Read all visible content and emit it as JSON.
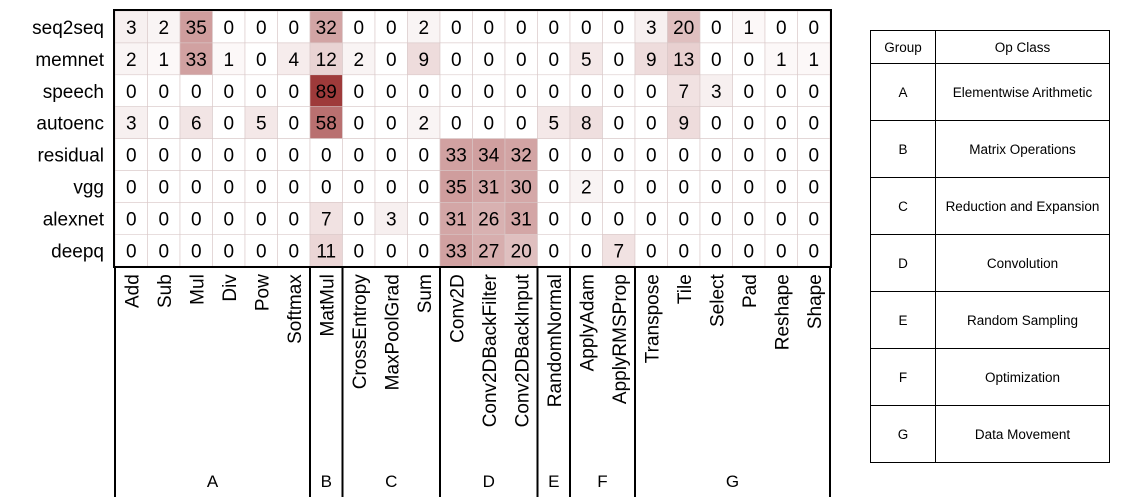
{
  "chart_data": {
    "type": "heatmap",
    "rows": [
      "seq2seq",
      "memnet",
      "speech",
      "autoenc",
      "residual",
      "vgg",
      "alexnet",
      "deepq"
    ],
    "columns": [
      "Add",
      "Sub",
      "Mul",
      "Div",
      "Pow",
      "Softmax",
      "MatMul",
      "CrossEntropy",
      "MaxPoolGrad",
      "Sum",
      "Conv2D",
      "Conv2DBackFilter",
      "Conv2DBackInput",
      "RandomNormal",
      "ApplyAdam",
      "ApplyRMSProp",
      "Transpose",
      "Tile",
      "Select",
      "Pad",
      "Reshape",
      "Shape"
    ],
    "values": [
      [
        3,
        2,
        35,
        0,
        0,
        0,
        32,
        0,
        0,
        2,
        0,
        0,
        0,
        0,
        0,
        0,
        3,
        20,
        0,
        1,
        0,
        0
      ],
      [
        2,
        1,
        33,
        1,
        0,
        4,
        12,
        2,
        0,
        9,
        0,
        0,
        0,
        0,
        5,
        0,
        9,
        13,
        0,
        0,
        1,
        1
      ],
      [
        0,
        0,
        0,
        0,
        0,
        0,
        89,
        0,
        0,
        0,
        0,
        0,
        0,
        0,
        0,
        0,
        0,
        7,
        3,
        0,
        0,
        0
      ],
      [
        3,
        0,
        6,
        0,
        5,
        0,
        58,
        0,
        0,
        2,
        0,
        0,
        0,
        5,
        8,
        0,
        0,
        9,
        0,
        0,
        0,
        0
      ],
      [
        0,
        0,
        0,
        0,
        0,
        0,
        0,
        0,
        0,
        0,
        33,
        34,
        32,
        0,
        0,
        0,
        0,
        0,
        0,
        0,
        0,
        0
      ],
      [
        0,
        0,
        0,
        0,
        0,
        0,
        0,
        0,
        0,
        0,
        35,
        31,
        30,
        0,
        2,
        0,
        0,
        0,
        0,
        0,
        0,
        0
      ],
      [
        0,
        0,
        0,
        0,
        0,
        0,
        7,
        0,
        3,
        0,
        31,
        26,
        31,
        0,
        0,
        0,
        0,
        0,
        0,
        0,
        0,
        0
      ],
      [
        0,
        0,
        0,
        0,
        0,
        0,
        11,
        0,
        0,
        0,
        33,
        27,
        20,
        0,
        0,
        7,
        0,
        0,
        0,
        0,
        0,
        0
      ]
    ],
    "groups": [
      {
        "label": "A",
        "columns": [
          "Add",
          "Sub",
          "Mul",
          "Div",
          "Pow",
          "Softmax"
        ]
      },
      {
        "label": "B",
        "columns": [
          "MatMul"
        ]
      },
      {
        "label": "C",
        "columns": [
          "CrossEntropy",
          "MaxPoolGrad",
          "Sum"
        ]
      },
      {
        "label": "D",
        "columns": [
          "Conv2D",
          "Conv2DBackFilter",
          "Conv2DBackInput"
        ]
      },
      {
        "label": "E",
        "columns": [
          "RandomNormal"
        ]
      },
      {
        "label": "F",
        "columns": [
          "ApplyAdam",
          "ApplyRMSProp"
        ]
      },
      {
        "label": "G",
        "columns": [
          "Transpose",
          "Tile",
          "Select",
          "Pad",
          "Reshape",
          "Shape"
        ]
      }
    ],
    "colormap": {
      "low": "#ffffff",
      "high": "#9e3a3a"
    },
    "value_range": [
      0,
      89
    ]
  },
  "legend_table": {
    "headers": [
      "Group",
      "Op Class"
    ],
    "rows": [
      {
        "group": "A",
        "op_class": "Elementwise Arithmetic"
      },
      {
        "group": "B",
        "op_class": "Matrix Operations"
      },
      {
        "group": "C",
        "op_class": "Reduction and Expansion"
      },
      {
        "group": "D",
        "op_class": "Convolution"
      },
      {
        "group": "E",
        "op_class": "Random Sampling"
      },
      {
        "group": "F",
        "op_class": "Optimization"
      },
      {
        "group": "G",
        "op_class": "Data Movement"
      }
    ]
  }
}
